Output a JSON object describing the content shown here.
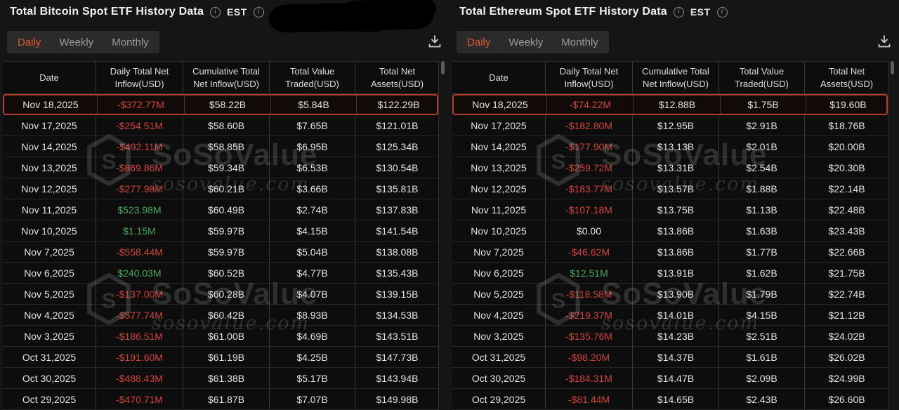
{
  "watermark": {
    "brand": "SoSoValue",
    "domain": "sosovalue.com"
  },
  "colors": {
    "accent_tab": "#dd5a35",
    "negative": "#d2453c",
    "positive": "#49a75e",
    "highlight_border": "#b23f2a",
    "background": "#151515"
  },
  "panels": [
    {
      "title": "Total Bitcoin Spot ETF History Data",
      "timezone_label": "EST",
      "tabs": [
        {
          "label": "Daily",
          "active": true
        },
        {
          "label": "Weekly",
          "active": false
        },
        {
          "label": "Monthly",
          "active": false
        }
      ],
      "columns": [
        "Date",
        "Daily Total Net Inflow(USD)",
        "Cumulative Total Net Inflow(USD)",
        "Total Value Traded(USD)",
        "Total Net Assets(USD)"
      ],
      "rows": [
        {
          "date": "Nov 18,2025",
          "inflow": "-$372.77M",
          "tone": "neg",
          "cumulative": "$58.22B",
          "traded": "$5.84B",
          "assets": "$122.29B",
          "highlighted": true
        },
        {
          "date": "Nov 17,2025",
          "inflow": "-$254.51M",
          "tone": "neg",
          "cumulative": "$58.60B",
          "traded": "$7.65B",
          "assets": "$121.01B",
          "highlighted": false
        },
        {
          "date": "Nov 14,2025",
          "inflow": "-$492.11M",
          "tone": "neg",
          "cumulative": "$58.85B",
          "traded": "$6.95B",
          "assets": "$125.34B",
          "highlighted": false
        },
        {
          "date": "Nov 13,2025",
          "inflow": "-$869.86M",
          "tone": "neg",
          "cumulative": "$59.34B",
          "traded": "$6.53B",
          "assets": "$130.54B",
          "highlighted": false
        },
        {
          "date": "Nov 12,2025",
          "inflow": "-$277.98M",
          "tone": "neg",
          "cumulative": "$60.21B",
          "traded": "$3.66B",
          "assets": "$135.81B",
          "highlighted": false
        },
        {
          "date": "Nov 11,2025",
          "inflow": "$523.98M",
          "tone": "pos",
          "cumulative": "$60.49B",
          "traded": "$2.74B",
          "assets": "$137.83B",
          "highlighted": false
        },
        {
          "date": "Nov 10,2025",
          "inflow": "$1.15M",
          "tone": "pos",
          "cumulative": "$59.97B",
          "traded": "$4.15B",
          "assets": "$141.54B",
          "highlighted": false
        },
        {
          "date": "Nov 7,2025",
          "inflow": "-$558.44M",
          "tone": "neg",
          "cumulative": "$59.97B",
          "traded": "$5.04B",
          "assets": "$138.08B",
          "highlighted": false
        },
        {
          "date": "Nov 6,2025",
          "inflow": "$240.03M",
          "tone": "pos",
          "cumulative": "$60.52B",
          "traded": "$4.77B",
          "assets": "$135.43B",
          "highlighted": false
        },
        {
          "date": "Nov 5,2025",
          "inflow": "-$137.00M",
          "tone": "neg",
          "cumulative": "$60.28B",
          "traded": "$4.07B",
          "assets": "$139.15B",
          "highlighted": false
        },
        {
          "date": "Nov 4,2025",
          "inflow": "-$577.74M",
          "tone": "neg",
          "cumulative": "$60.42B",
          "traded": "$8.93B",
          "assets": "$134.53B",
          "highlighted": false
        },
        {
          "date": "Nov 3,2025",
          "inflow": "-$186.51M",
          "tone": "neg",
          "cumulative": "$61.00B",
          "traded": "$4.69B",
          "assets": "$143.51B",
          "highlighted": false
        },
        {
          "date": "Oct 31,2025",
          "inflow": "-$191.60M",
          "tone": "neg",
          "cumulative": "$61.19B",
          "traded": "$4.25B",
          "assets": "$147.73B",
          "highlighted": false
        },
        {
          "date": "Oct 30,2025",
          "inflow": "-$488.43M",
          "tone": "neg",
          "cumulative": "$61.38B",
          "traded": "$5.17B",
          "assets": "$143.94B",
          "highlighted": false
        },
        {
          "date": "Oct 29,2025",
          "inflow": "-$470.71M",
          "tone": "neg",
          "cumulative": "$61.87B",
          "traded": "$7.07B",
          "assets": "$149.98B",
          "highlighted": false
        }
      ]
    },
    {
      "title": "Total Ethereum Spot ETF History Data",
      "timezone_label": "EST",
      "tabs": [
        {
          "label": "Daily",
          "active": true
        },
        {
          "label": "Weekly",
          "active": false
        },
        {
          "label": "Monthly",
          "active": false
        }
      ],
      "columns": [
        "Date",
        "Daily Total Net Inflow(USD)",
        "Cumulative Total Net Inflow(USD)",
        "Total Value Traded(USD)",
        "Total Net Assets(USD)"
      ],
      "rows": [
        {
          "date": "Nov 18,2025",
          "inflow": "-$74.22M",
          "tone": "neg",
          "cumulative": "$12.88B",
          "traded": "$1.75B",
          "assets": "$19.60B",
          "highlighted": true
        },
        {
          "date": "Nov 17,2025",
          "inflow": "-$182.80M",
          "tone": "neg",
          "cumulative": "$12.95B",
          "traded": "$2.91B",
          "assets": "$18.76B",
          "highlighted": false
        },
        {
          "date": "Nov 14,2025",
          "inflow": "-$177.90M",
          "tone": "neg",
          "cumulative": "$13.13B",
          "traded": "$2.01B",
          "assets": "$20.00B",
          "highlighted": false
        },
        {
          "date": "Nov 13,2025",
          "inflow": "-$259.72M",
          "tone": "neg",
          "cumulative": "$13.31B",
          "traded": "$2.54B",
          "assets": "$20.30B",
          "highlighted": false
        },
        {
          "date": "Nov 12,2025",
          "inflow": "-$183.77M",
          "tone": "neg",
          "cumulative": "$13.57B",
          "traded": "$1.88B",
          "assets": "$22.14B",
          "highlighted": false
        },
        {
          "date": "Nov 11,2025",
          "inflow": "-$107.18M",
          "tone": "neg",
          "cumulative": "$13.75B",
          "traded": "$1.13B",
          "assets": "$22.48B",
          "highlighted": false
        },
        {
          "date": "Nov 10,2025",
          "inflow": "$0.00",
          "tone": "neutral",
          "cumulative": "$13.86B",
          "traded": "$1.63B",
          "assets": "$23.43B",
          "highlighted": false
        },
        {
          "date": "Nov 7,2025",
          "inflow": "-$46.62M",
          "tone": "neg",
          "cumulative": "$13.86B",
          "traded": "$1.77B",
          "assets": "$22.66B",
          "highlighted": false
        },
        {
          "date": "Nov 6,2025",
          "inflow": "$12.51M",
          "tone": "pos",
          "cumulative": "$13.91B",
          "traded": "$1.62B",
          "assets": "$21.75B",
          "highlighted": false
        },
        {
          "date": "Nov 5,2025",
          "inflow": "-$118.58M",
          "tone": "neg",
          "cumulative": "$13.90B",
          "traded": "$1.79B",
          "assets": "$22.74B",
          "highlighted": false
        },
        {
          "date": "Nov 4,2025",
          "inflow": "-$219.37M",
          "tone": "neg",
          "cumulative": "$14.01B",
          "traded": "$4.15B",
          "assets": "$21.12B",
          "highlighted": false
        },
        {
          "date": "Nov 3,2025",
          "inflow": "-$135.76M",
          "tone": "neg",
          "cumulative": "$14.23B",
          "traded": "$2.51B",
          "assets": "$24.02B",
          "highlighted": false
        },
        {
          "date": "Oct 31,2025",
          "inflow": "-$98.20M",
          "tone": "neg",
          "cumulative": "$14.37B",
          "traded": "$1.61B",
          "assets": "$26.02B",
          "highlighted": false
        },
        {
          "date": "Oct 30,2025",
          "inflow": "-$184.31M",
          "tone": "neg",
          "cumulative": "$14.47B",
          "traded": "$2.09B",
          "assets": "$24.99B",
          "highlighted": false
        },
        {
          "date": "Oct 29,2025",
          "inflow": "-$81.44M",
          "tone": "neg",
          "cumulative": "$14.65B",
          "traded": "$2.43B",
          "assets": "$26.60B",
          "highlighted": false
        }
      ]
    }
  ]
}
